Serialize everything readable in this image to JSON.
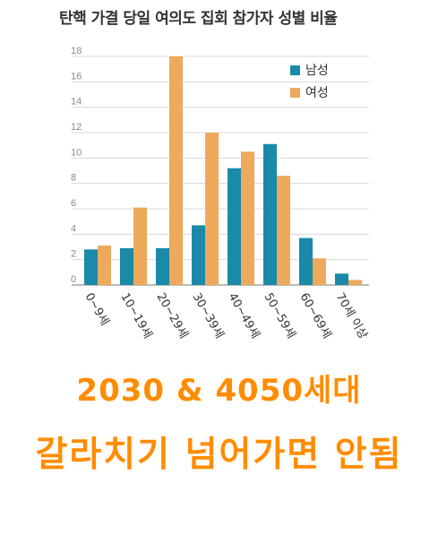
{
  "chart_data": {
    "type": "bar",
    "title": "탄핵 가결 당일 여의도 집회 참가자 성별 비율",
    "categories": [
      "0~9세",
      "10~19세",
      "20~29세",
      "30~39세",
      "40~49세",
      "50~59세",
      "60~69세",
      "70세 이상"
    ],
    "series": [
      {
        "name": "남성",
        "color": "#1a8aa8",
        "values": [
          2.8,
          2.9,
          2.9,
          4.7,
          9.2,
          11.1,
          3.7,
          0.9
        ]
      },
      {
        "name": "여성",
        "color": "#eda95c",
        "values": [
          3.1,
          6.1,
          18.0,
          12.0,
          10.5,
          8.6,
          2.1,
          0.4
        ]
      }
    ],
    "ylim": [
      0,
      18
    ],
    "yticks": [
      "0",
      "2",
      "4",
      "6",
      "8",
      "10",
      "12",
      "14",
      "16",
      "18"
    ],
    "grid": true,
    "legend_position": "top-right"
  },
  "caption": {
    "line1": "2030 & 4050세대",
    "line2": "갈라치기 넘어가면 안됨"
  }
}
